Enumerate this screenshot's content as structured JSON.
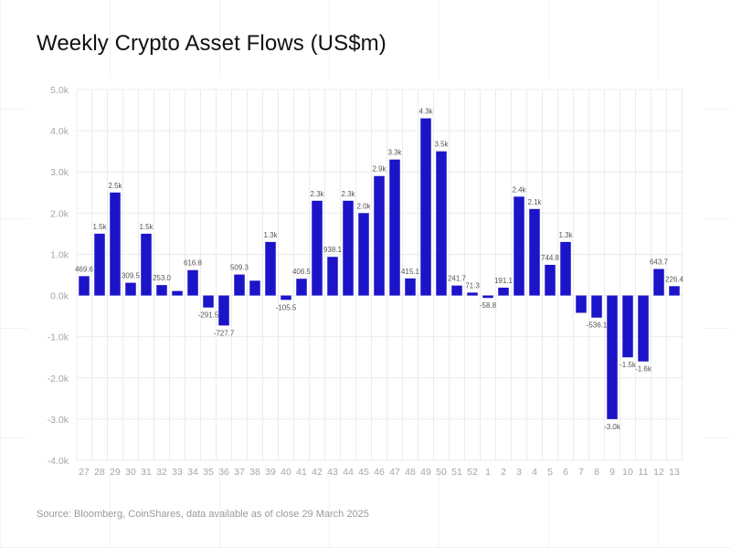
{
  "title": "Weekly Crypto Asset Flows (US$m)",
  "source": "Source: Bloomberg, CoinShares, data available as of close 29 March 2025",
  "colors": {
    "bar": "#1c14c8",
    "grid": "#ececec",
    "axis_text": "#a6a6a6",
    "label_text": "#555555"
  },
  "chart_data": {
    "type": "bar",
    "title": "Weekly Crypto Asset Flows (US$m)",
    "xlabel": "",
    "ylabel": "",
    "ylim": [
      -4000,
      5000
    ],
    "grid": true,
    "yticks": [
      5000,
      4000,
      3000,
      2000,
      1000,
      0,
      -1000,
      -2000,
      -3000,
      -4000
    ],
    "ytick_labels": [
      "5.0k",
      "4.0k",
      "3.0k",
      "2.0k",
      "1.0k",
      "0.0k",
      "-1.0k",
      "-2.0k",
      "-3.0k",
      "-4.0k"
    ],
    "categories": [
      "27",
      "28",
      "29",
      "30",
      "31",
      "32",
      "33",
      "34",
      "35",
      "36",
      "37",
      "38",
      "39",
      "40",
      "41",
      "42",
      "43",
      "44",
      "45",
      "46",
      "47",
      "48",
      "49",
      "50",
      "51",
      "52",
      "1",
      "2",
      "3",
      "4",
      "5",
      "6",
      "7",
      "8",
      "9",
      "10",
      "11",
      "12",
      "13"
    ],
    "values": [
      469.6,
      1500,
      2500,
      309.5,
      1500,
      253.0,
      110,
      616.8,
      -291.5,
      -727.7,
      509.3,
      360,
      1300,
      -105.5,
      406.5,
      2300,
      938.1,
      2300,
      2000,
      2900,
      3300,
      415.1,
      4300,
      3500,
      241.7,
      71.3,
      -58.8,
      191.1,
      2400,
      2100,
      744.8,
      1300,
      -420,
      -536.1,
      -3000,
      -1500,
      -1600,
      643.7,
      226.4
    ],
    "data_labels": [
      "469.6",
      "1.5k",
      "2.5k",
      "309.5",
      "1.5k",
      "253.0",
      "",
      "616.8",
      "-291.5",
      "-727.7",
      "509.3",
      "",
      "1.3k",
      "-105.5",
      "406.5",
      "2.3k",
      "938.1",
      "2.3k",
      "2.0k",
      "2.9k",
      "3.3k",
      "415.1",
      "4.3k",
      "3.5k",
      "241.7",
      "71.3",
      "-58.8",
      "191.1",
      "2.4k",
      "2.1k",
      "744.8",
      "1.3k",
      "",
      "-536.1",
      "-3.0k",
      "-1.5k",
      "-1.6k",
      "643.7",
      "226.4"
    ]
  }
}
